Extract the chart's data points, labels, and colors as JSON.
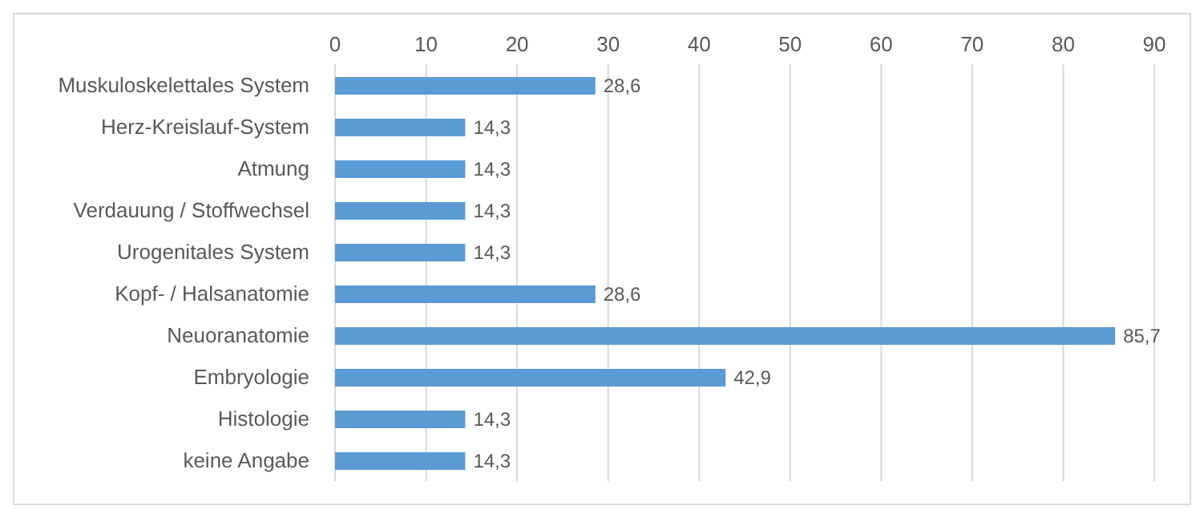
{
  "chart_data": {
    "type": "bar",
    "orientation": "horizontal",
    "categories": [
      "Muskuloskelettales System",
      "Herz-Kreislauf-System",
      "Atmung",
      "Verdauung / Stoffwechsel",
      "Urogenitales System",
      "Kopf- / Halsanatomie",
      "Neuoranatomie",
      "Embryologie",
      "Histologie",
      "keine Angabe"
    ],
    "values": [
      28.6,
      14.3,
      14.3,
      14.3,
      14.3,
      28.6,
      85.7,
      42.9,
      14.3,
      14.3
    ],
    "value_labels": [
      "28,6",
      "14,3",
      "14,3",
      "14,3",
      "14,3",
      "28,6",
      "85,7",
      "42,9",
      "14,3",
      "14,3"
    ],
    "color": "#5b9bd5",
    "xlim": [
      0,
      90
    ],
    "xticks": [
      0,
      10,
      20,
      30,
      40,
      50,
      60,
      70,
      80,
      90
    ],
    "grid": "x"
  }
}
